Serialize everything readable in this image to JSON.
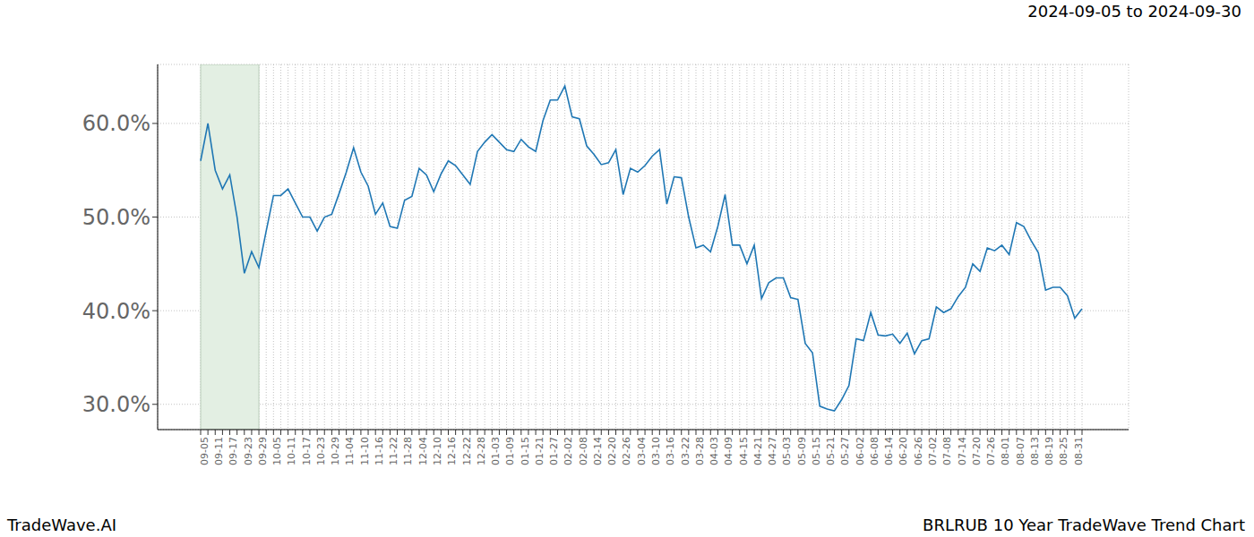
{
  "chart_data": {
    "type": "line",
    "title": "BRLRUB 10 Year TradeWave Trend Chart",
    "subtitle": "2024-09-05 to 2024-09-30",
    "annotation": "TradeWave.AI",
    "highlight": {
      "from": "09-05",
      "to": "09-29"
    },
    "categories": [
      "09-05",
      null,
      "09-11",
      null,
      "09-17",
      null,
      "09-23",
      null,
      "09-29",
      null,
      "10-05",
      null,
      "10-11",
      null,
      "10-17",
      null,
      "10-23",
      null,
      "10-29",
      null,
      "11-04",
      null,
      "11-10",
      null,
      "11-16",
      null,
      "11-22",
      null,
      "11-28",
      null,
      "12-04",
      null,
      "12-10",
      null,
      "12-16",
      null,
      "12-22",
      null,
      "12-28",
      null,
      "01-03",
      null,
      "01-09",
      null,
      "01-15",
      null,
      "01-21",
      null,
      "01-27",
      null,
      "02-02",
      null,
      "02-08",
      null,
      "02-14",
      null,
      "02-20",
      null,
      "02-26",
      null,
      "03-04",
      null,
      "03-10",
      null,
      "03-16",
      null,
      "03-22",
      null,
      "03-28",
      null,
      "04-03",
      null,
      "04-09",
      null,
      "04-15",
      null,
      "04-21",
      null,
      "04-27",
      null,
      "05-03",
      null,
      "05-09",
      null,
      "05-15",
      null,
      "05-21",
      null,
      "05-27",
      null,
      "06-02",
      null,
      "06-08",
      null,
      "06-14",
      null,
      "06-20",
      null,
      "06-26",
      null,
      "07-02",
      null,
      "07-08",
      null,
      "07-14",
      null,
      "07-20",
      null,
      "07-26",
      null,
      "08-01",
      null,
      "08-07",
      null,
      "08-13",
      null,
      "08-19",
      null,
      "08-25",
      null,
      "08-31",
      null
    ],
    "values": [
      56,
      60,
      55,
      53,
      54.5,
      50,
      44,
      46.3,
      44.6,
      48.5,
      52.3,
      52.3,
      53,
      51.5,
      50,
      50,
      48.5,
      50,
      50.3,
      52.5,
      54.8,
      57.4,
      54.8,
      53.3,
      50.3,
      51.5,
      49,
      48.8,
      51.8,
      52.2,
      55.2,
      54.5,
      52.7,
      54.6,
      56,
      55.5,
      54.5,
      53.5,
      57,
      58,
      58.8,
      58,
      57.2,
      57,
      58.3,
      57.5,
      57,
      60.3,
      62.5,
      62.5,
      64,
      60.7,
      60.5,
      57.6,
      56.7,
      55.6,
      55.8,
      57.2,
      52.4,
      55.2,
      54.8,
      55.5,
      56.5,
      57.2,
      51.4,
      54.3,
      54.2,
      50,
      46.7,
      47,
      46.3,
      49,
      52.4,
      47,
      47,
      45,
      47,
      41.3,
      43,
      43.5,
      43.5,
      41.4,
      41.2,
      36.5,
      35.5,
      29.8,
      29.5,
      29.3,
      30.5,
      32,
      37,
      36.8,
      39.8,
      37.4,
      37.3,
      37.5,
      36.5,
      37.6,
      35.4,
      36.8,
      37,
      40.4,
      39.8,
      40.2,
      41.5,
      42.5,
      45,
      44.2,
      46.7,
      46.4,
      47,
      46,
      49.4,
      49,
      47.5,
      46.2,
      42.2,
      42.5,
      42.5,
      41.6,
      39.2,
      40.2
    ],
    "color": "#1f77b4",
    "ylim": [
      27.3,
      66.3
    ],
    "yticks": [
      {
        "value": 30,
        "label": "30.0%"
      },
      {
        "value": 40,
        "label": "40.0%"
      },
      {
        "value": 50,
        "label": "50.0%"
      },
      {
        "value": 60,
        "label": "60.0%"
      }
    ],
    "grid": true
  }
}
